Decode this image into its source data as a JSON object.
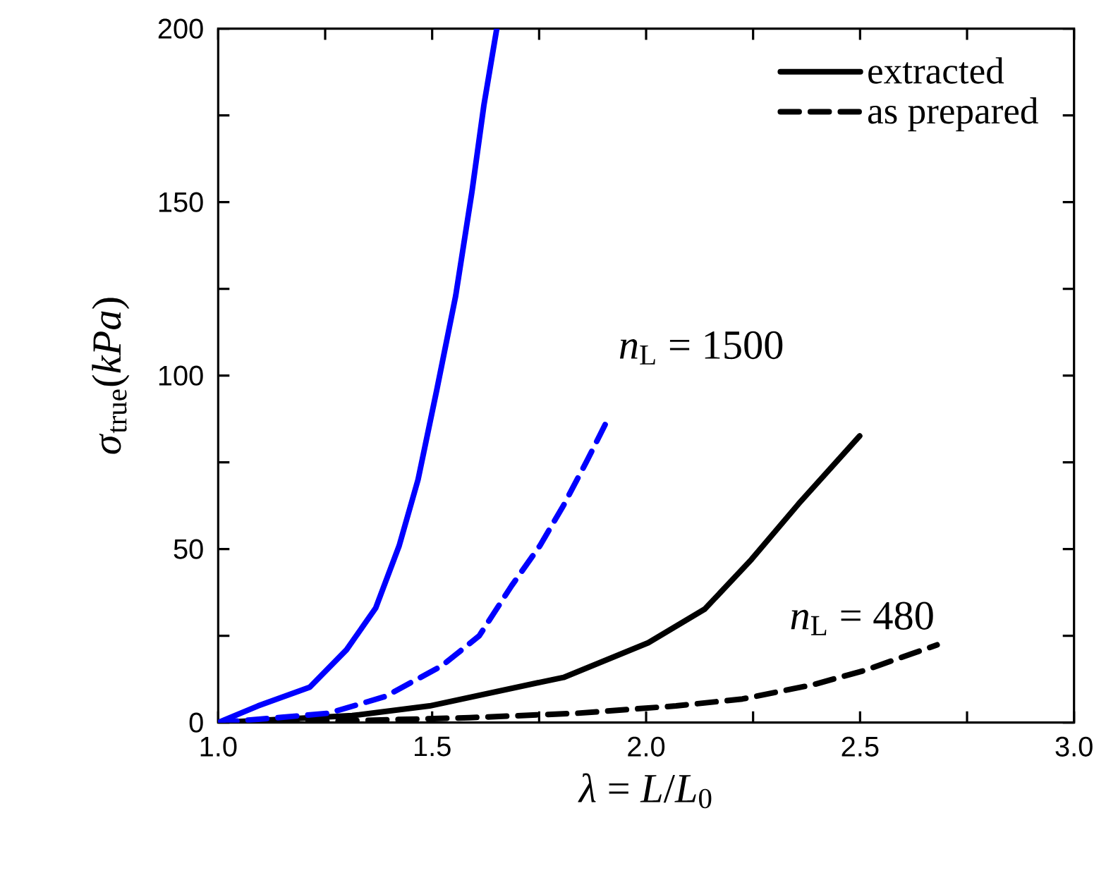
{
  "chart_data": {
    "type": "line",
    "xlabel": "*λ* = *L*/*L*$_{0}$",
    "ylabel": "*σ*$_{true}$(*kPa*)",
    "xlim": [
      1,
      3
    ],
    "ylim": [
      0,
      200
    ],
    "xticks": [
      {
        "value": 1,
        "label": "1.0"
      },
      {
        "value": 1.25,
        "label": null
      },
      {
        "value": 1.5,
        "label": "1.5"
      },
      {
        "value": 1.75,
        "label": null
      },
      {
        "value": 2,
        "label": "2.0"
      },
      {
        "value": 2.25,
        "label": null
      },
      {
        "value": 2.5,
        "label": "2.5"
      },
      {
        "value": 2.75,
        "label": null
      },
      {
        "value": 3,
        "label": "3.0"
      }
    ],
    "yticks": [
      0,
      {
        "value": 25,
        "label": null
      },
      50,
      {
        "value": 75,
        "label": null
      },
      100,
      {
        "value": 125,
        "label": null
      },
      150,
      {
        "value": 175,
        "label": null
      },
      200
    ],
    "legend": "top right",
    "grid": false,
    "marker": "none",
    "annotations": [
      "*n*$_{L}$ = 1500",
      "*n*$_{L}$ = 480"
    ],
    "series": [
      {
        "name": "extracted",
        "color": "#000000",
        "line_style": "solid",
        "x": [
          1.0,
          1.313,
          1.494,
          1.752,
          1.807,
          2.005,
          2.137,
          2.246,
          2.356,
          2.499
        ],
        "values": [
          0,
          2,
          4.8,
          11.6,
          13,
          23,
          32.7,
          47,
          63,
          82.6
        ]
      },
      {
        "name": "as prepared",
        "color": "#000000",
        "line_style": "dashed",
        "x": [
          1.0,
          1.3,
          1.587,
          1.84,
          2.07,
          2.225,
          2.39,
          2.51,
          2.62,
          2.68
        ],
        "values": [
          0,
          0.5,
          1.4,
          2.7,
          4.8,
          6.8,
          10.9,
          15,
          19.8,
          22.4
        ]
      },
      {
        "color": "#0000ff",
        "line_style": "solid",
        "x": [
          1.0,
          1.093,
          1.214,
          1.3,
          1.368,
          1.423,
          1.467,
          1.511,
          1.555,
          1.593,
          1.621,
          1.651
        ],
        "values": [
          0,
          4.8,
          10.2,
          21,
          33,
          51,
          70,
          96,
          123,
          153,
          178,
          200
        ]
      },
      {
        "color": "#0000ff",
        "line_style": "dashed",
        "x": [
          1.0,
          1.148,
          1.258,
          1.39,
          1.522,
          1.61,
          1.686,
          1.752,
          1.807,
          1.862,
          1.912
        ],
        "values": [
          0,
          1.5,
          2.7,
          7.5,
          16.3,
          25,
          39.5,
          51,
          62.6,
          75.5,
          87.8
        ]
      }
    ]
  }
}
